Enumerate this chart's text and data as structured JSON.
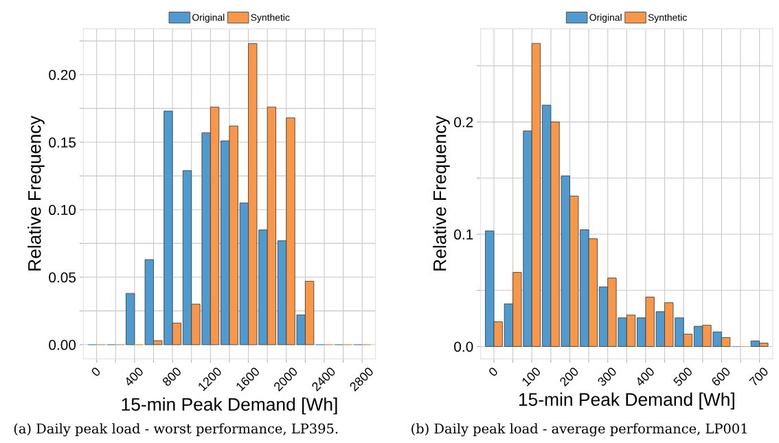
{
  "chart_data": [
    {
      "type": "bar",
      "xlabel": "15-min Peak Demand [Wh]",
      "ylabel": "Relative Frequency",
      "categories": [
        "0",
        null,
        "400",
        null,
        "800",
        null,
        "1200",
        null,
        "1600",
        null,
        "2000",
        null,
        "2400",
        null,
        "2800"
      ],
      "series": [
        {
          "name": "Original",
          "color": "#4f9bd0",
          "values": [
            0,
            0,
            0.038,
            0.063,
            0.173,
            0.129,
            0.157,
            0.151,
            0.105,
            0.085,
            0.077,
            0.022,
            0,
            0,
            0
          ]
        },
        {
          "name": "Synthetic",
          "color": "#f8974a",
          "values": [
            0,
            0,
            0,
            0.003,
            0.016,
            0.03,
            0.176,
            0.162,
            0.223,
            0.176,
            0.168,
            0.047,
            0,
            0,
            0
          ]
        }
      ],
      "ylim": [
        -0.0105,
        0.234
      ],
      "yticks": [
        {
          "value": 0,
          "label": "0.00"
        },
        {
          "value": 0.025,
          "label": null
        },
        0.05,
        {
          "value": 0.075,
          "label": null
        },
        {
          "value": 0.1,
          "label": "0.10"
        },
        {
          "value": 0.125,
          "label": null
        },
        0.15,
        {
          "value": 0.175,
          "label": null
        },
        {
          "value": 0.2,
          "label": "0.20"
        },
        {
          "value": 0.225,
          "label": null
        }
      ],
      "grid": true,
      "legend": "top",
      "annotations": [
        "(a) Daily peak load - worst performance, LP395."
      ]
    },
    {
      "type": "bar",
      "xlabel": "15-min Peak Demand [Wh]",
      "ylabel": "Relative Frequency",
      "categories": [
        "0",
        null,
        "100",
        null,
        "200",
        null,
        "300",
        null,
        "400",
        null,
        "500",
        null,
        "600",
        null,
        "700"
      ],
      "series": [
        {
          "name": "Original",
          "color": "#4f9bd0",
          "values": [
            0.103,
            0.038,
            0.192,
            0.215,
            0.152,
            0.104,
            0.053,
            0.0255,
            0.0255,
            0.031,
            0.0255,
            0.018,
            0.013,
            0,
            0.005
          ]
        },
        {
          "name": "Synthetic",
          "color": "#f8974a",
          "values": [
            0.022,
            0.066,
            0.27,
            0.2,
            0.134,
            0.096,
            0.061,
            0.028,
            0.044,
            0.039,
            0.011,
            0.019,
            0.008,
            0,
            0.003
          ]
        }
      ],
      "ylim": [
        -0.011,
        0.283
      ],
      "yticks": [
        {
          "value": 0,
          "label": "0.0"
        },
        {
          "value": 0.05,
          "label": null
        },
        0.1,
        {
          "value": 0.15,
          "label": null
        },
        0.2,
        {
          "value": 0.25,
          "label": null
        }
      ],
      "grid": true,
      "legend": "top",
      "annotations": [
        "(b) Daily peak load - average performance, LP001"
      ]
    }
  ]
}
